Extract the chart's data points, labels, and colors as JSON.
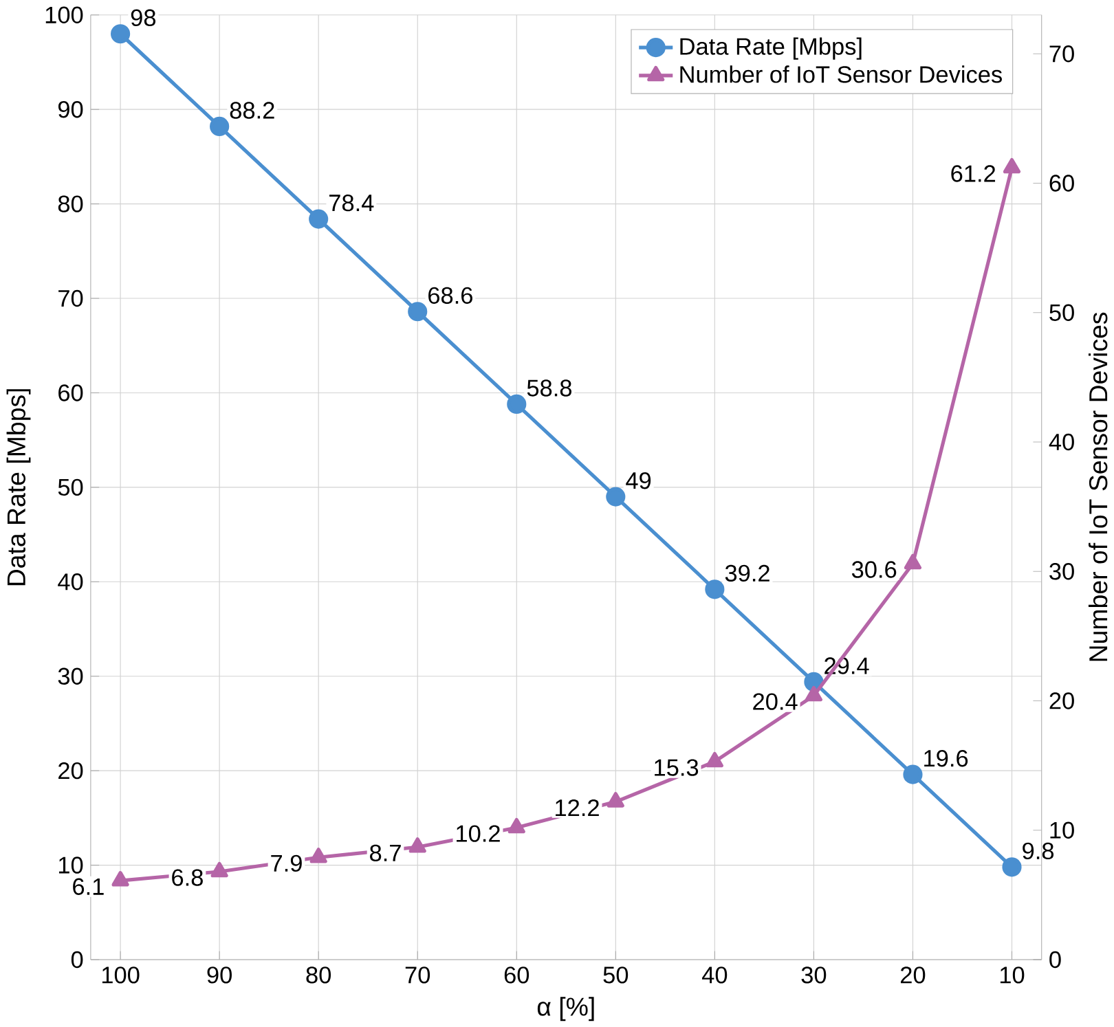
{
  "chart_data": {
    "type": "line",
    "xlabel": "α [%]",
    "ylabel": "Data Rate [Mbps]",
    "y2label": "Number of IoT Sensor Devices",
    "categories": [
      "100",
      "90",
      "80",
      "70",
      "60",
      "50",
      "40",
      "30",
      "20",
      "10"
    ],
    "ylim": [
      0,
      100
    ],
    "yticks": [
      0,
      10,
      20,
      30,
      40,
      50,
      60,
      70,
      80,
      90,
      100
    ],
    "y2lim": [
      0,
      73
    ],
    "y2ticks": [
      0,
      10,
      20,
      30,
      40,
      50,
      60,
      70
    ],
    "grid": true,
    "legend": "top right",
    "data_labels": true,
    "series": [
      {
        "name": "Data Rate [Mbps]",
        "color": "#4a8fd0",
        "marker": "circle",
        "values": [
          98,
          88.2,
          78.4,
          68.6,
          58.8,
          49,
          39.2,
          29.4,
          19.6,
          9.8
        ]
      },
      {
        "name": "Number of IoT Sensor Devices",
        "color": "#b565a7",
        "marker": "triangle",
        "axis": "y2",
        "values": [
          6.1,
          6.8,
          7.9,
          8.7,
          10.2,
          12.2,
          15.3,
          20.4,
          30.6,
          61.2
        ]
      }
    ]
  }
}
